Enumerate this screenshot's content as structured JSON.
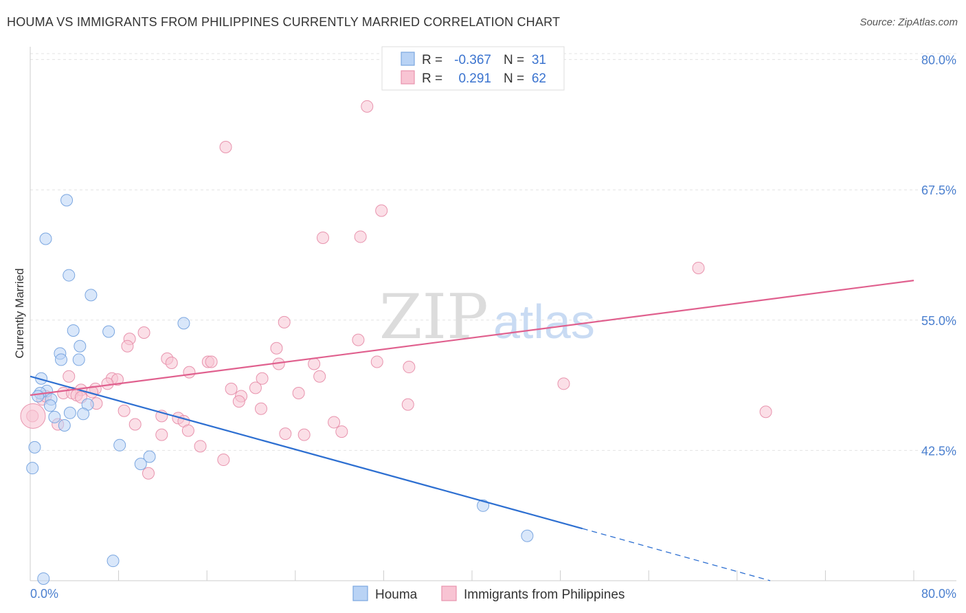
{
  "title": "HOUMA VS IMMIGRANTS FROM PHILIPPINES CURRENTLY MARRIED CORRELATION CHART",
  "source": "Source: ZipAtlas.com",
  "colors": {
    "houma_fill": "#b9d3f5",
    "houma_stroke": "#7aa6e0",
    "houma_line": "#2d6fd1",
    "phil_fill": "#f8c4d3",
    "phil_stroke": "#e893ad",
    "phil_line": "#e0608e"
  },
  "chart_data": {
    "type": "scatter",
    "title": "HOUMA VS IMMIGRANTS FROM PHILIPPINES CURRENTLY MARRIED CORRELATION CHART",
    "xlabel": "",
    "ylabel": "Currently Married",
    "xlim": [
      0,
      80
    ],
    "ylim": [
      30,
      81
    ],
    "y_ticks": [
      42.5,
      55.0,
      67.5,
      80.0
    ],
    "y_tick_labels": [
      "42.5%",
      "55.0%",
      "67.5%",
      "80.0%"
    ],
    "x_tick_labels": [
      "0.0%",
      "80.0%"
    ],
    "legend": [
      {
        "r_label": "R =",
        "r": "-0.367",
        "n_label": "N =",
        "n": "31"
      },
      {
        "r_label": "R =",
        "r": "0.291",
        "n_label": "N =",
        "n": "62"
      }
    ],
    "watermark": {
      "a": "ZIP",
      "b": "atlas"
    },
    "series": [
      {
        "name": "Houma",
        "trend": {
          "x0": 0,
          "y0": 49.6,
          "x1": 50,
          "y1": 35.0,
          "dash_to_x": 67,
          "dash_to_y": 30.0
        },
        "points": [
          [
            3.3,
            66.5
          ],
          [
            1.4,
            62.8
          ],
          [
            3.5,
            59.3
          ],
          [
            5.5,
            57.4
          ],
          [
            3.9,
            54.0
          ],
          [
            7.1,
            53.9
          ],
          [
            13.9,
            54.7
          ],
          [
            4.5,
            52.5
          ],
          [
            2.7,
            51.8
          ],
          [
            2.8,
            51.2
          ],
          [
            4.4,
            51.2
          ],
          [
            1.0,
            49.4
          ],
          [
            1.5,
            48.2
          ],
          [
            0.9,
            48.0
          ],
          [
            0.7,
            47.7
          ],
          [
            1.9,
            47.4
          ],
          [
            1.8,
            46.8
          ],
          [
            5.2,
            46.9
          ],
          [
            3.6,
            46.1
          ],
          [
            4.8,
            46.0
          ],
          [
            2.2,
            45.7
          ],
          [
            3.1,
            44.9
          ],
          [
            0.4,
            42.8
          ],
          [
            8.1,
            43.0
          ],
          [
            10.8,
            41.9
          ],
          [
            10.0,
            41.2
          ],
          [
            0.2,
            40.8
          ],
          [
            41.0,
            37.2
          ],
          [
            45.0,
            34.3
          ],
          [
            7.5,
            31.9
          ],
          [
            1.2,
            30.2
          ]
        ]
      },
      {
        "name": "Immigrants from Philippines",
        "trend": {
          "x0": 0,
          "y0": 47.8,
          "x1": 80,
          "y1": 58.8
        },
        "points": [
          [
            30.5,
            75.5
          ],
          [
            17.7,
            71.6
          ],
          [
            31.8,
            65.5
          ],
          [
            26.5,
            62.9
          ],
          [
            29.9,
            63.0
          ],
          [
            60.5,
            60.0
          ],
          [
            23.0,
            54.8
          ],
          [
            10.3,
            53.8
          ],
          [
            9.0,
            53.2
          ],
          [
            29.7,
            53.1
          ],
          [
            8.8,
            52.5
          ],
          [
            22.3,
            52.3
          ],
          [
            12.4,
            51.3
          ],
          [
            12.8,
            50.9
          ],
          [
            16.1,
            51.0
          ],
          [
            16.4,
            51.0
          ],
          [
            22.5,
            50.8
          ],
          [
            25.7,
            50.8
          ],
          [
            31.4,
            51.0
          ],
          [
            34.3,
            50.5
          ],
          [
            14.4,
            50.0
          ],
          [
            26.2,
            49.6
          ],
          [
            3.5,
            49.6
          ],
          [
            21.0,
            49.4
          ],
          [
            7.4,
            49.4
          ],
          [
            7.9,
            49.3
          ],
          [
            7.0,
            48.9
          ],
          [
            20.4,
            48.5
          ],
          [
            18.2,
            48.4
          ],
          [
            48.3,
            48.9
          ],
          [
            4.6,
            48.3
          ],
          [
            5.9,
            48.4
          ],
          [
            5.6,
            48.1
          ],
          [
            3.0,
            48.0
          ],
          [
            3.8,
            48.0
          ],
          [
            4.2,
            47.8
          ],
          [
            4.6,
            47.6
          ],
          [
            19.1,
            47.7
          ],
          [
            24.3,
            48.0
          ],
          [
            1.1,
            47.4
          ],
          [
            1.4,
            47.7
          ],
          [
            18.9,
            47.2
          ],
          [
            6.0,
            47.0
          ],
          [
            34.2,
            46.9
          ],
          [
            20.9,
            46.5
          ],
          [
            8.5,
            46.3
          ],
          [
            66.6,
            46.2
          ],
          [
            0.2,
            45.8
          ],
          [
            11.9,
            45.8
          ],
          [
            13.4,
            45.6
          ],
          [
            13.9,
            45.3
          ],
          [
            27.5,
            45.2
          ],
          [
            9.5,
            45.0
          ],
          [
            2.5,
            45.0
          ],
          [
            14.3,
            44.4
          ],
          [
            11.9,
            44.0
          ],
          [
            23.1,
            44.1
          ],
          [
            24.8,
            44.0
          ],
          [
            28.2,
            44.3
          ],
          [
            15.4,
            42.9
          ],
          [
            17.5,
            41.6
          ],
          [
            10.7,
            40.3
          ]
        ]
      }
    ]
  }
}
